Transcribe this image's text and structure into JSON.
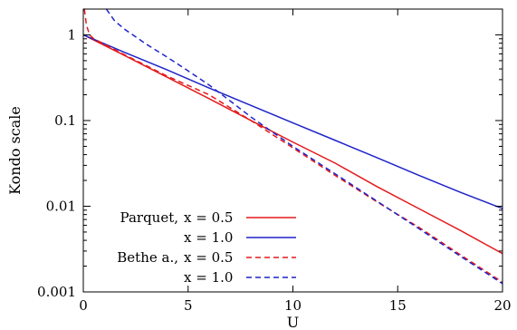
{
  "chart_data": {
    "type": "line",
    "title": "",
    "xlabel": "U",
    "ylabel": "Kondo scale",
    "xlim": [
      0,
      20
    ],
    "ylim": [
      0.001,
      2
    ],
    "yscale": "log",
    "x_ticks": [
      0,
      5,
      10,
      15,
      20
    ],
    "x_tick_labels": [
      "0",
      "5",
      "10",
      "15",
      "20"
    ],
    "y_ticks": [
      0.001,
      0.01,
      0.1,
      1
    ],
    "y_tick_labels": [
      "0.001",
      "0.01",
      "0.1",
      "1"
    ],
    "grid": false,
    "legend_position": "bottom-left",
    "legend": [
      {
        "prefix": "Parquet,",
        "label": "x = 0.5"
      },
      {
        "prefix": "",
        "label": "x = 1.0"
      },
      {
        "prefix": "Bethe a.,",
        "label": "x = 0.5"
      },
      {
        "prefix": "",
        "label": "x = 1.0"
      }
    ],
    "series": [
      {
        "color": "#e41a1c",
        "dash": "solid",
        "x": [
          0,
          2,
          4,
          6,
          8,
          10,
          12,
          14,
          16,
          18,
          20
        ],
        "y": [
          1.0,
          0.57,
          0.32,
          0.18,
          0.1,
          0.056,
          0.032,
          0.017,
          0.0094,
          0.0052,
          0.0028
        ]
      },
      {
        "color": "#1f24c8",
        "dash": "solid",
        "x": [
          0,
          2,
          4,
          6,
          8,
          10,
          12,
          14,
          16,
          18,
          20
        ],
        "y": [
          1.0,
          0.62,
          0.39,
          0.24,
          0.15,
          0.094,
          0.059,
          0.037,
          0.023,
          0.0145,
          0.0094
        ]
      },
      {
        "color": "#e41a1c",
        "dash": "dashed",
        "x": [
          0.05,
          0.15,
          0.3,
          0.5,
          1,
          2,
          4,
          6,
          8,
          10,
          12,
          14,
          16,
          18,
          20
        ],
        "y": [
          2.0,
          1.3,
          1.0,
          0.9,
          0.78,
          0.58,
          0.33,
          0.2,
          0.1,
          0.048,
          0.023,
          0.0113,
          0.0057,
          0.0027,
          0.0013
        ]
      },
      {
        "color": "#1f24c8",
        "dash": "dashed",
        "x": [
          1.1,
          1.5,
          2,
          3,
          4,
          5,
          6,
          7,
          8,
          10,
          12,
          14,
          16,
          18,
          20
        ],
        "y": [
          2.0,
          1.45,
          1.15,
          0.78,
          0.55,
          0.38,
          0.26,
          0.17,
          0.11,
          0.05,
          0.024,
          0.0115,
          0.0055,
          0.0026,
          0.00125
        ]
      }
    ]
  }
}
